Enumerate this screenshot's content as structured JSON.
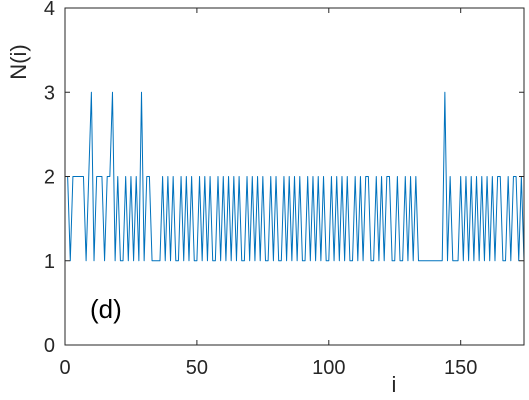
{
  "chart_data": {
    "type": "line",
    "title": "",
    "xlabel": "i",
    "ylabel": "N(i)",
    "annotation": "(d)",
    "xlim": [
      0,
      174
    ],
    "ylim": [
      0,
      4
    ],
    "x_ticks": [
      0,
      50,
      100,
      150
    ],
    "y_ticks": [
      0,
      1,
      2,
      3,
      4
    ],
    "x_tick_labels": [
      "0",
      "50",
      "100",
      "150"
    ],
    "y_tick_labels": [
      "0",
      "1",
      "2",
      "3",
      "4"
    ],
    "grid": false,
    "line_color": "#0072BD",
    "series": [
      {
        "x": [
          1,
          2,
          3,
          4,
          5,
          6,
          7,
          8,
          9,
          10,
          11,
          12,
          13,
          14,
          15,
          16,
          17,
          18,
          19,
          20,
          21,
          22,
          23,
          24,
          25,
          26,
          27,
          28,
          29,
          30,
          31,
          32,
          33,
          34,
          35,
          36,
          37,
          38,
          39,
          40,
          41,
          42,
          43,
          44,
          45,
          46,
          47,
          48,
          49,
          50,
          51,
          52,
          53,
          54,
          55,
          56,
          57,
          58,
          59,
          60,
          61,
          62,
          63,
          64,
          65,
          66,
          67,
          68,
          69,
          70,
          71,
          72,
          73,
          74,
          75,
          76,
          77,
          78,
          79,
          80,
          81,
          82,
          83,
          84,
          85,
          86,
          87,
          88,
          89,
          90,
          91,
          92,
          93,
          94,
          95,
          96,
          97,
          98,
          99,
          100,
          101,
          102,
          103,
          104,
          105,
          106,
          107,
          108,
          109,
          110,
          111,
          112,
          113,
          114,
          115,
          116,
          117,
          118,
          119,
          120,
          121,
          122,
          123,
          124,
          125,
          126,
          127,
          128,
          129,
          130,
          131,
          132,
          133,
          134,
          135,
          136,
          137,
          138,
          139,
          140,
          141,
          142,
          143,
          144,
          145,
          146,
          147,
          148,
          149,
          150,
          151,
          152,
          153,
          154,
          155,
          156,
          157,
          158,
          159,
          160,
          161,
          162,
          163,
          164,
          165,
          166,
          167,
          168,
          169,
          170,
          171,
          172,
          173,
          174
        ],
        "y": [
          2,
          1,
          2,
          2,
          2,
          2,
          2,
          1,
          2,
          3,
          1,
          2,
          2,
          2,
          1,
          2,
          2,
          3,
          1,
          2,
          1,
          1,
          2,
          1,
          2,
          1,
          2,
          1,
          3,
          1,
          2,
          2,
          1,
          1,
          1,
          1,
          2,
          1,
          2,
          1,
          2,
          1,
          1,
          2,
          1,
          2,
          1,
          2,
          1,
          1,
          2,
          1,
          2,
          1,
          2,
          1,
          1,
          2,
          1,
          2,
          1,
          2,
          1,
          2,
          1,
          2,
          1,
          1,
          2,
          1,
          2,
          1,
          2,
          1,
          2,
          1,
          1,
          2,
          1,
          2,
          1,
          1,
          2,
          1,
          2,
          1,
          2,
          1,
          2,
          1,
          1,
          2,
          1,
          2,
          1,
          2,
          1,
          2,
          1,
          1,
          2,
          1,
          2,
          1,
          2,
          1,
          2,
          1,
          1,
          2,
          1,
          2,
          1,
          2,
          2,
          1,
          1,
          2,
          1,
          2,
          1,
          2,
          2,
          1,
          1,
          2,
          1,
          1,
          2,
          1,
          2,
          1,
          2,
          1,
          1,
          1,
          1,
          1,
          1,
          1,
          1,
          1,
          1,
          3,
          1,
          2,
          1,
          1,
          1,
          2,
          1,
          2,
          1,
          2,
          1,
          2,
          1,
          2,
          1,
          2,
          1,
          2,
          1,
          2,
          2,
          1,
          1,
          2,
          1,
          2,
          2,
          1,
          2,
          1
        ]
      }
    ]
  }
}
